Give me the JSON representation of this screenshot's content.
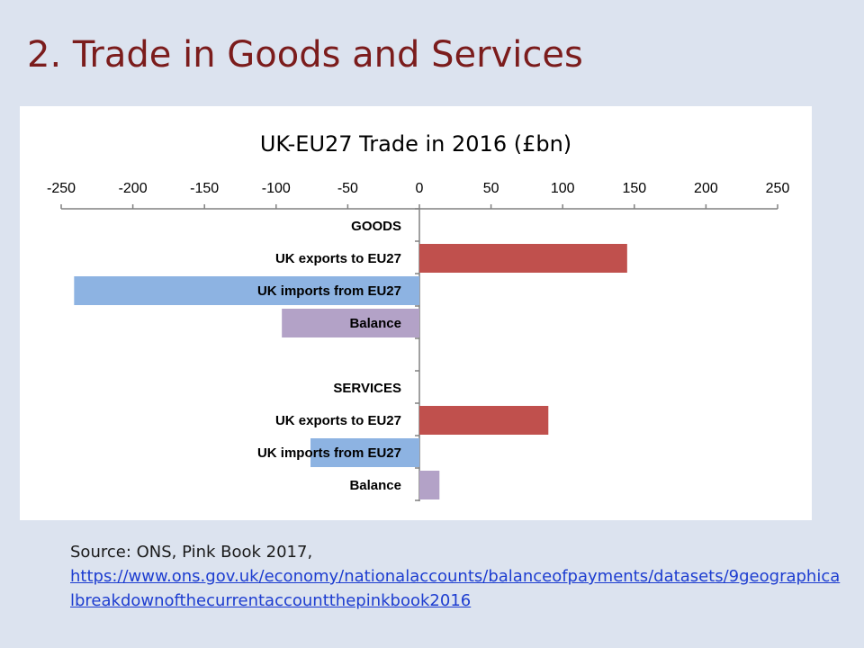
{
  "slide": {
    "title": "2. Trade in Goods and Services"
  },
  "source": {
    "prefix": "Source: ONS, Pink Book 2017,",
    "link_text": "https://www.ons.gov.uk/economy/nationalaccounts/balanceofpayments/datasets/9geographicalbreakdownofthecurrentaccountthepinkbook2016"
  },
  "colors": {
    "exports": "#c0504d",
    "imports": "#8db3e2",
    "balance": "#b3a2c7",
    "title": "#7b1c1c",
    "background": "#dce3ef"
  },
  "chart_data": {
    "type": "bar",
    "orientation": "horizontal",
    "title": "UK-EU27 Trade in 2016 (£bn)",
    "xlim": [
      -250,
      250
    ],
    "xticks": [
      -250,
      -200,
      -150,
      -100,
      -50,
      0,
      50,
      100,
      150,
      200,
      250
    ],
    "x_axis_position": "top",
    "grid": false,
    "legend": "none",
    "categories": [
      "GOODS",
      "UK exports to EU27",
      "UK imports from EU27",
      "Balance",
      "",
      "SERVICES",
      "UK exports to EU27",
      "UK imports from EU27",
      "Balance"
    ],
    "values": [
      null,
      145,
      -241,
      -96,
      null,
      null,
      90,
      -76,
      14
    ],
    "bar_kind": [
      "header",
      "exports",
      "imports",
      "balance",
      "blank",
      "header",
      "exports",
      "imports",
      "balance"
    ]
  }
}
